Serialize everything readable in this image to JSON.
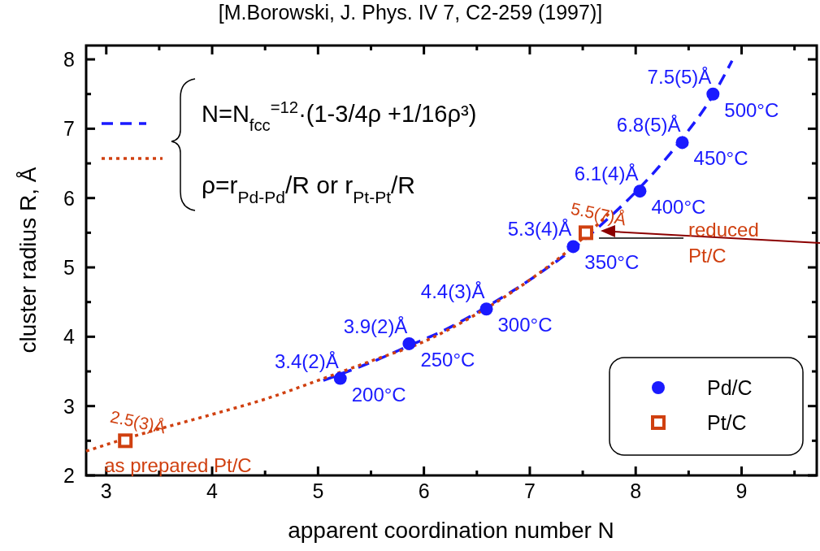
{
  "chart_data": {
    "type": "scatter",
    "title": "[M.Borowski, J. Phys. IV 7, C2-259 (1997)]",
    "xlabel": "apparent coordination number N",
    "ylabel": "cluster radius R, Å",
    "xlim": [
      2.81,
      9.71
    ],
    "ylim": [
      2,
      8.2
    ],
    "xticks": [
      3,
      {
        "value": 3.5,
        "label": null
      },
      4,
      {
        "value": 4.5,
        "label": null
      },
      5,
      {
        "value": 5.5,
        "label": null
      },
      6,
      {
        "value": 6.5,
        "label": null
      },
      7,
      {
        "value": 7.5,
        "label": null
      },
      8,
      {
        "value": 8.5,
        "label": null
      },
      9,
      {
        "value": 9.5,
        "label": null
      }
    ],
    "yticks": [
      {
        "value": 2,
        "label": "2"
      },
      {
        "value": 2.5,
        "label": null
      },
      3,
      {
        "value": 3.5,
        "label": null
      },
      4,
      {
        "value": 4.5,
        "label": null
      },
      5,
      {
        "value": 5.5,
        "label": null
      },
      6,
      {
        "value": 6.5,
        "label": null
      },
      7,
      {
        "value": 7.5,
        "label": null
      },
      8
    ],
    "grid": false,
    "legend": "bottom right",
    "series": [
      {
        "type": "line",
        "color": "#1a1aff",
        "line_style": "dashed",
        "marker": "none",
        "x": [
          5.05,
          5.21,
          5.5,
          5.86,
          6.2,
          6.59,
          7.0,
          7.41,
          7.7,
          8.04,
          8.44,
          8.73,
          8.91
        ],
        "values": [
          3.37,
          3.46,
          3.63,
          3.87,
          4.1,
          4.43,
          4.82,
          5.27,
          5.65,
          6.15,
          6.86,
          7.48,
          7.98
        ]
      },
      {
        "type": "line",
        "color": "#d04010",
        "line_style": "dotted",
        "marker": "none",
        "x": [
          2.81,
          3.18,
          3.5,
          4,
          4.5,
          5,
          5.5,
          6,
          6.5,
          7,
          7.5,
          7.77
        ],
        "values": [
          2.35,
          2.53,
          2.67,
          2.88,
          3.1,
          3.37,
          3.65,
          3.93,
          4.33,
          4.82,
          5.42,
          5.81
        ]
      },
      {
        "name": "Pd/C",
        "color": "#1a1aff",
        "marker": "circle",
        "x": [
          5.21,
          5.86,
          6.59,
          7.41,
          8.04,
          8.44,
          8.73
        ],
        "values": [
          3.4,
          3.9,
          4.4,
          5.3,
          6.1,
          6.8,
          7.5
        ],
        "value_labels": [
          "3.4(2)Å",
          "3.9(2)Å",
          "4.4(3)Å",
          "5.3(4)Å",
          "6.1(4)Å",
          "6.8(5)Å",
          "7.5(5)Å"
        ]
      },
      {
        "name": "Pt/C",
        "color": "#d04010",
        "marker": "square",
        "x": [
          3.18,
          7.53
        ],
        "values": [
          2.5,
          5.5
        ],
        "value_labels": [
          "2.5(3)Å",
          "5.5(7)Å"
        ]
      }
    ],
    "annotations": [
      {
        "text": "200°C",
        "x": 5.21,
        "y": 3.4
      },
      {
        "text": "250°C",
        "x": 5.86,
        "y": 3.9
      },
      {
        "text": "300°C",
        "x": 6.59,
        "y": 4.4
      },
      {
        "text": "350°C",
        "x": 7.41,
        "y": 5.3
      },
      {
        "text": "400°C",
        "x": 8.04,
        "y": 6.1
      },
      {
        "text": "450°C",
        "x": 8.44,
        "y": 6.8
      },
      {
        "text": "500°C",
        "x": 8.73,
        "y": 7.5
      },
      {
        "text": "as prepared Pt/C",
        "x": 3.18,
        "y": 2.5
      },
      "N=N$_{fcc}$$^{=12}$·(1-3/4ρ +1/16ρ³)",
      "ρ=r$_{Pd-Pd}$/R or r$_{Pt-Pt}$/R",
      "reduced\nPt/C"
    ]
  }
}
